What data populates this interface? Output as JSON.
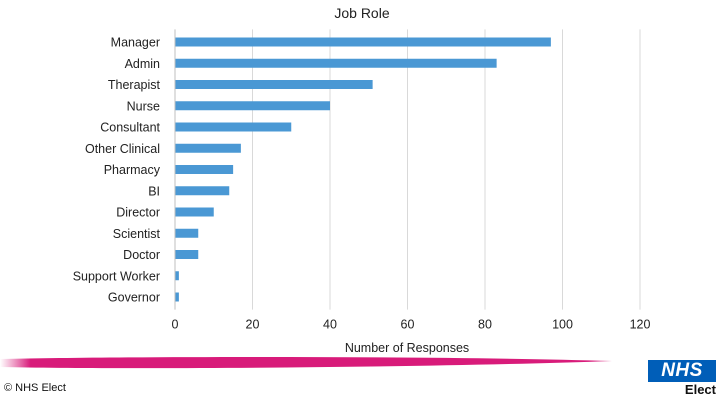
{
  "chart_data": {
    "type": "bar",
    "orientation": "horizontal",
    "title": "Job Role",
    "xlabel": "Number of Responses",
    "ylabel": "",
    "categories": [
      "Manager",
      "Admin",
      "Therapist",
      "Nurse",
      "Consultant",
      "Other Clinical",
      "Pharmacy",
      "BI",
      "Director",
      "Scientist",
      "Doctor",
      "Support Worker",
      "Governor"
    ],
    "values": [
      97,
      83,
      51,
      40,
      30,
      17,
      15,
      14,
      10,
      6,
      6,
      1,
      1
    ],
    "xlim": [
      0,
      120
    ],
    "xticks": [
      "0",
      "20",
      "40",
      "60",
      "80",
      "100",
      "120"
    ],
    "grid": true,
    "bar_color": "#4a98d4",
    "grid_color": "#d9d9d9"
  },
  "footer": {
    "copyright": "© NHS Elect",
    "logo_box_text": "NHS",
    "logo_sub_text": "Elect",
    "logo_color": "#005eb8",
    "band_color": "#d81b7a"
  }
}
